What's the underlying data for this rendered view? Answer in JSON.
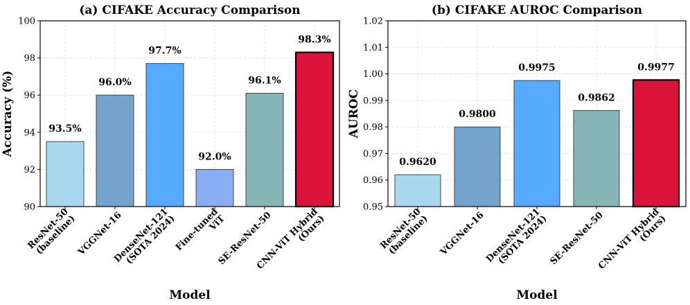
{
  "chart_data": [
    {
      "type": "bar",
      "title": "(a) CIFAKE Accuracy Comparison",
      "xlabel": "Model",
      "ylabel": "Accuracy (%)",
      "ylim": [
        90,
        100
      ],
      "yticks": [
        "90",
        "92",
        "94",
        "96",
        "98",
        "100"
      ],
      "grid": true,
      "categories": [
        [
          "ResNet-50",
          "(baseline)"
        ],
        [
          "VGGNet-16"
        ],
        [
          "DenseNet-121",
          "(SOTA 2024)"
        ],
        [
          "Fine-tuned",
          "ViT"
        ],
        [
          "SE-ResNet-50"
        ],
        [
          "CNN-ViT Hybrid",
          "(Ours)"
        ]
      ],
      "values": [
        93.5,
        96.0,
        97.7,
        92.0,
        96.1,
        98.3
      ],
      "value_labels": [
        "93.5%",
        "96.0%",
        "97.7%",
        "92.0%",
        "96.1%",
        "98.3%"
      ],
      "colors": [
        "#a8d8ef",
        "#74a3cb",
        "#56aaff",
        "#8aaef3",
        "#86b5b5",
        "#dc143c"
      ],
      "highlight_index": 5
    },
    {
      "type": "bar",
      "title": "(b) CIFAKE AUROC Comparison",
      "xlabel": "Model",
      "ylabel": "AUROC",
      "ylim": [
        0.95,
        1.02
      ],
      "yticks": [
        "0.95",
        "0.96",
        "0.97",
        "0.98",
        "0.99",
        "1.00",
        "1.01",
        "1.02"
      ],
      "grid": true,
      "categories": [
        [
          "ResNet-50",
          "(baseline)"
        ],
        [
          "VGGNet-16"
        ],
        [
          "DenseNet-121",
          "(SOTA 2024)"
        ],
        [
          "SE-ResNet-50"
        ],
        [
          "CNN-ViT Hybrid",
          "(Ours)"
        ]
      ],
      "values": [
        0.962,
        0.98,
        0.9975,
        0.9862,
        0.9977
      ],
      "value_labels": [
        "0.9620",
        "0.9800",
        "0.9975",
        "0.9862",
        "0.9977"
      ],
      "colors": [
        "#a8d8ef",
        "#74a3cb",
        "#56aaff",
        "#86b5b5",
        "#dc143c"
      ],
      "highlight_index": 4
    }
  ]
}
